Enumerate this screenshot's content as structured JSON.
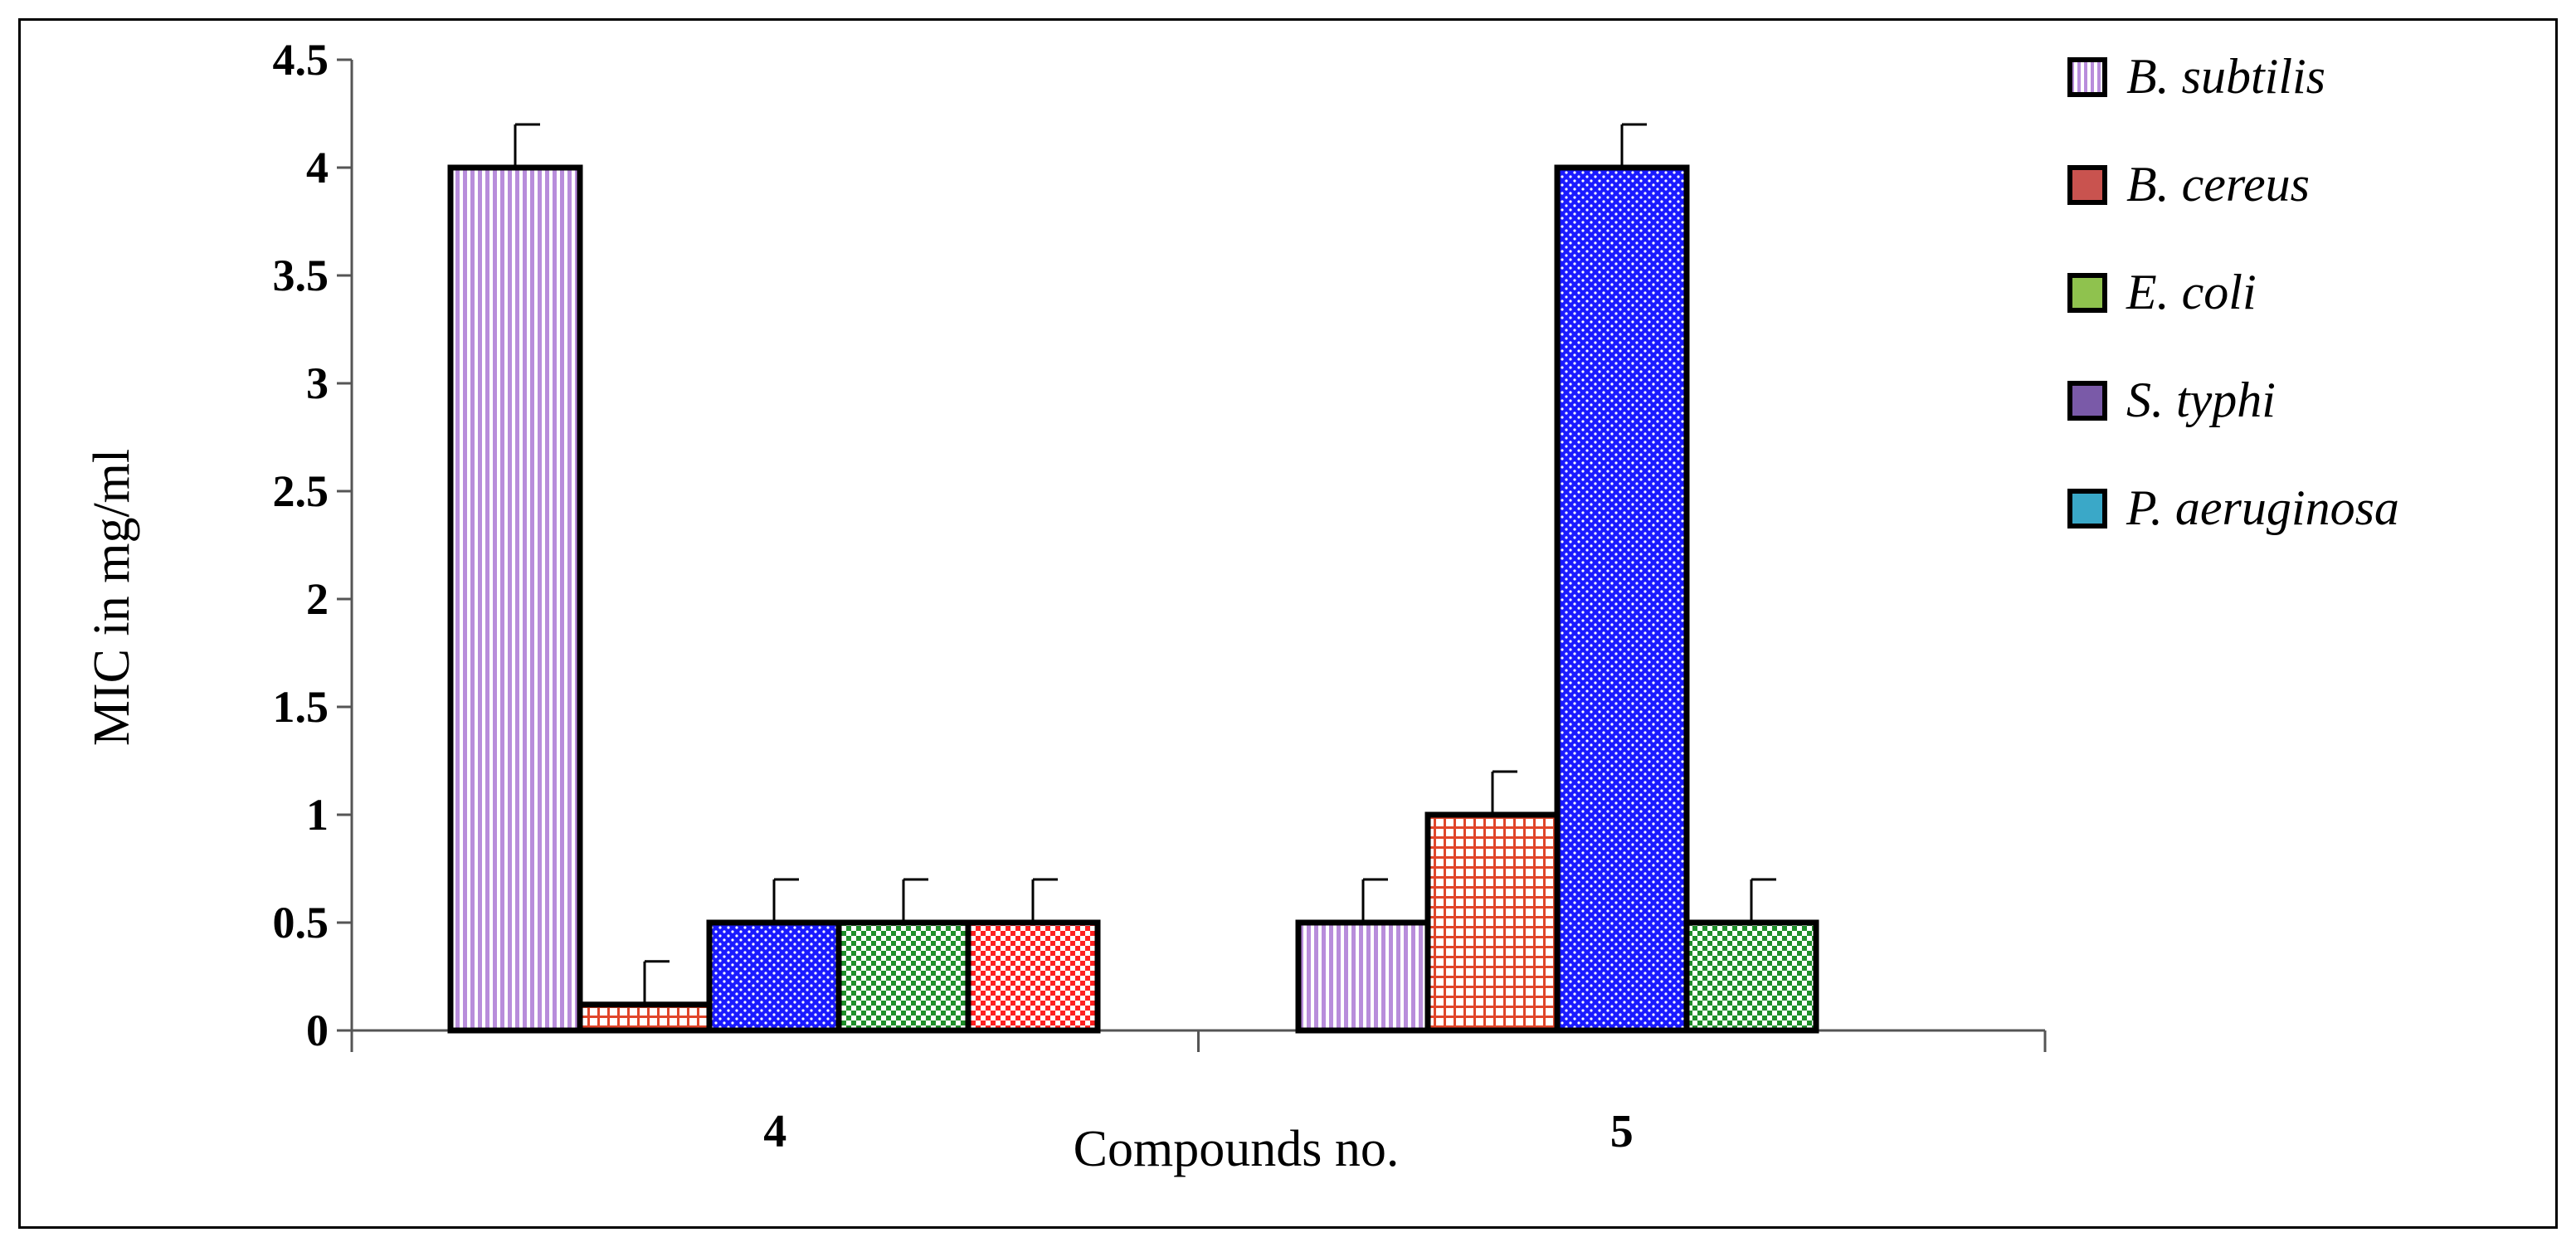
{
  "chart_data": {
    "type": "bar",
    "title": "",
    "xlabel": "Compounds no.",
    "ylabel": "MIC in mg/ml",
    "ylim": [
      0,
      4.5
    ],
    "yticks": [
      "0",
      "0.5",
      "1",
      "1.5",
      "2",
      "2.5",
      "3",
      "3.5",
      "4",
      "4.5"
    ],
    "categories": [
      "4",
      "5"
    ],
    "legend_position": "right",
    "grid": false,
    "series": [
      {
        "name": "B. subtilis",
        "color": "#c8a0e0",
        "pattern": "vertical-lines",
        "values": [
          4,
          0.5
        ],
        "errors": [
          0.2,
          0.2
        ]
      },
      {
        "name": "B. cereus",
        "color": "#d9534f",
        "pattern": "grid",
        "values": [
          0.12,
          1
        ],
        "errors": [
          0.2,
          0.2
        ]
      },
      {
        "name": "E. coli",
        "color": "#1a1aff",
        "pattern": "dots",
        "values": [
          0.5,
          4
        ],
        "errors": [
          0.2,
          0.2
        ]
      },
      {
        "name": "S. typhi",
        "color": "#2ea02e",
        "pattern": "checker",
        "values": [
          0.5,
          0.5
        ],
        "errors": [
          0.2,
          0.2
        ]
      },
      {
        "name": "P. aeruginosa",
        "color": "#ff2a2a",
        "pattern": "checker",
        "values": [
          0.5,
          null
        ],
        "errors": [
          0.2,
          null
        ]
      }
    ],
    "legend_swatch_colors": [
      "#c8a0e0",
      "#c9534f",
      "#8fc24e",
      "#7a5aa8",
      "#3aa8c8"
    ]
  }
}
